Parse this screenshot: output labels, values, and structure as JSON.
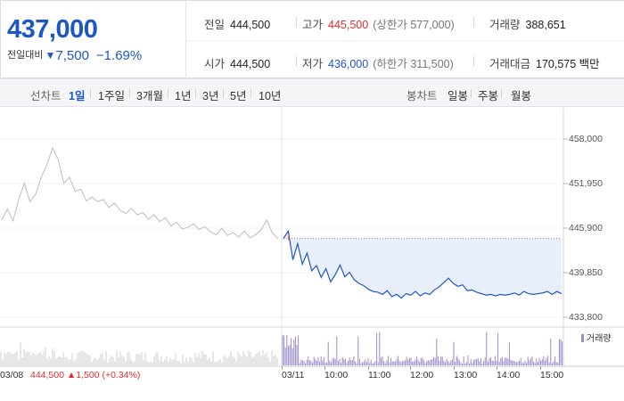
{
  "quote": {
    "price": "437,000",
    "change_label": "전일대비",
    "change_arrow": "▼",
    "change_value": "7,500",
    "change_pct": "−1.69%",
    "stats": {
      "prev_close": {
        "k": "전일",
        "v": "444,500"
      },
      "high": {
        "k": "고가",
        "v": "445,500",
        "sub": "(상한가 577,000)"
      },
      "volume": {
        "k": "거래량",
        "v": "388,651"
      },
      "open": {
        "k": "시가",
        "v": "444,500"
      },
      "low": {
        "k": "저가",
        "v": "436,000",
        "sub": "(하한가 311,500)"
      },
      "amount": {
        "k": "거래대금",
        "v": "170,575 백만"
      }
    }
  },
  "toolbar": {
    "line_label": "선차트",
    "ranges": [
      "1일",
      "1주일",
      "3개월",
      "1년",
      "3년",
      "5년",
      "10년"
    ],
    "candle_label": "봉차트",
    "candles": [
      "일봉",
      "주봉",
      "월봉"
    ]
  },
  "chart": {
    "volume_legend": "거래량",
    "prev_day_info": "444,500 ▲1,500 (+0.34%)",
    "x_labels": [
      "03/08",
      "03/11",
      "10:00",
      "11:00",
      "12:00",
      "13:00",
      "14:00",
      "15:00"
    ],
    "colors": {
      "today": "#1e56c8",
      "prev": "#bdbdbd",
      "fill": "#e9eefb",
      "volume": "#9b8cc8"
    }
  },
  "chart_data": {
    "type": "line",
    "y_ticks": [
      "458,000",
      "451,950",
      "445,900",
      "439,850",
      "433,800"
    ],
    "ylim": [
      433800,
      458000
    ],
    "series": [
      {
        "name": "03/08",
        "values": [
          447000,
          448500,
          446900,
          449800,
          452000,
          449500,
          450500,
          452800,
          454500,
          456800,
          455200,
          452000,
          452800,
          450900,
          451200,
          449600,
          450100,
          449500,
          449800,
          448700,
          449300,
          448300,
          447900,
          448600,
          447700,
          448000,
          447100,
          447700,
          446800,
          447300,
          446200,
          446700,
          445800,
          446000,
          446500,
          445700,
          446100,
          445400,
          445000,
          445900,
          444900,
          445300,
          444700,
          445500,
          444600,
          445000,
          445700,
          447000,
          445200,
          444500
        ]
      },
      {
        "name": "03/11",
        "values": [
          444500,
          445500,
          441600,
          443800,
          441000,
          442500,
          440100,
          440800,
          439200,
          440400,
          438600,
          439600,
          440900,
          439300,
          439900,
          438900,
          438400,
          438100,
          437600,
          437300,
          437200,
          436900,
          437400,
          436600,
          436900,
          436400,
          437000,
          436800,
          437300,
          436700,
          437100,
          436900,
          437500,
          437900,
          438500,
          439100,
          438400,
          438000,
          438200,
          437400,
          437500,
          437200,
          437000,
          436800,
          436900,
          436700,
          436900,
          436800,
          436900,
          437100,
          436800,
          437300,
          437000,
          436900,
          437000,
          437100,
          437300,
          436900,
          437300,
          437000
        ]
      }
    ],
    "prev_close": 444500
  }
}
